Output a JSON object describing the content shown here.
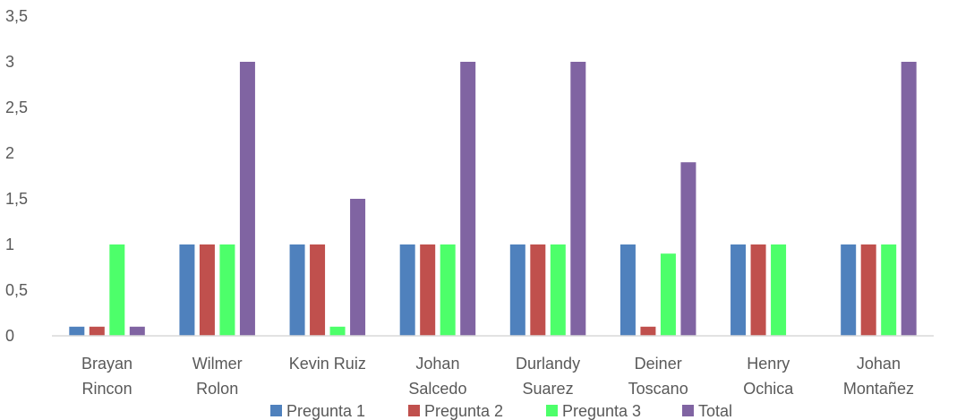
{
  "chart_data": {
    "type": "bar",
    "categories": [
      [
        "Brayan",
        "Rincon"
      ],
      [
        "Wilmer",
        "Rolon"
      ],
      [
        "Kevin Ruiz"
      ],
      [
        "Johan",
        "Salcedo"
      ],
      [
        "Durlandy",
        "Suarez"
      ],
      [
        "Deiner",
        "Toscano"
      ],
      [
        "Henry",
        "Ochica"
      ],
      [
        "Johan",
        "Montañez"
      ]
    ],
    "series": [
      {
        "name": "Pregunta 1",
        "color": "#4f81bd",
        "values": [
          0.1,
          1,
          1,
          1,
          1,
          1,
          1,
          1
        ]
      },
      {
        "name": "Pregunta 2",
        "color": "#c0504d",
        "values": [
          0.1,
          1,
          1,
          1,
          1,
          0.1,
          1,
          1
        ]
      },
      {
        "name": "Pregunta 3",
        "color": "#4dff6a",
        "values": [
          1,
          1,
          0.1,
          1,
          1,
          0.9,
          1,
          1
        ]
      },
      {
        "name": "Total",
        "color": "#8064a2",
        "values": [
          0.1,
          3,
          1.5,
          3,
          3,
          1.9,
          0,
          3
        ]
      }
    ],
    "ylim": [
      0,
      3.5
    ],
    "yticks": [
      "0",
      "0,5",
      "1",
      "1,5",
      "2",
      "2,5",
      "3",
      "3,5"
    ],
    "grid": false,
    "legend": "bottom",
    "title": "",
    "xlabel": "",
    "ylabel": ""
  }
}
